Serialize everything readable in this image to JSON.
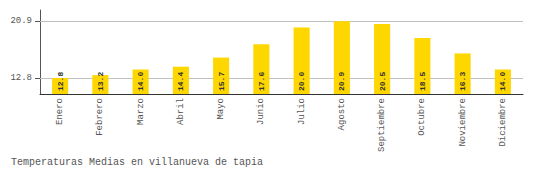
{
  "chart_data": {
    "type": "bar",
    "title": "Temperaturas Medias en villanueva de tapia",
    "categories": [
      "Enero",
      "Febrero",
      "Marzo",
      "Abril",
      "Mayo",
      "Junio",
      "Julio",
      "Agosto",
      "Septiembre",
      "Octubre",
      "Noviembre",
      "Diciembre"
    ],
    "values": [
      12.8,
      13.2,
      14.0,
      14.4,
      15.7,
      17.6,
      20.0,
      20.9,
      20.5,
      18.5,
      16.3,
      14.0
    ],
    "value_labels": [
      "12.8",
      "13.2",
      "14.0",
      "14.4",
      "15.7",
      "17.6",
      "20.0",
      "20.9",
      "20.5",
      "18.5",
      "16.3",
      "14.0"
    ],
    "color": "#FFD700",
    "ylim": [
      10.5,
      22.5
    ],
    "yticks": [
      12.8,
      20.9
    ],
    "grid": true,
    "data_labels": true
  }
}
